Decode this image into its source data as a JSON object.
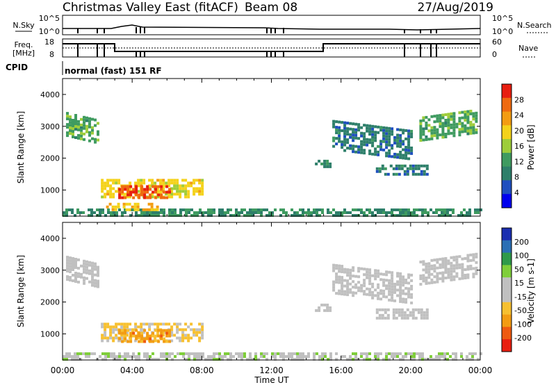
{
  "header": {
    "title": "Christmas Valley East (fitACF)",
    "beam": "Beam 08",
    "date": "27/Aug/2019"
  },
  "summary": {
    "nsky_label": "N.Sky",
    "nsky_ticks": [
      "10^5",
      "10^0"
    ],
    "nsearch_label": "N.Search",
    "nsearch_ticks": [
      "10^5",
      "10^0"
    ],
    "freq_label_lines": [
      "Freq.",
      "[MHz]"
    ],
    "freq_ticks": [
      "18",
      "8"
    ],
    "nave_label": "Nave",
    "nave_ticks": [
      "60",
      "0"
    ],
    "cpid_label": "CPID",
    "cpid_text": "normal (fast) 151 RF"
  },
  "colors": {
    "power_scale": [
      "#0000ee",
      "#1f4fbf",
      "#2e7f6a",
      "#3f9b60",
      "#9ecd3a",
      "#f4d21a",
      "#f39c12",
      "#ef6a10",
      "#e81e10"
    ],
    "velocity_scale": [
      "#e81e10",
      "#ef5a10",
      "#f39c12",
      "#f7c030",
      "#c0c0c0",
      "#c0c0c0",
      "#7fce3a",
      "#2e9a4a",
      "#2a6fb5",
      "#1b2fb0"
    ]
  },
  "chart_data": [
    {
      "type": "heatmap",
      "panel": "power",
      "xlabel": "Time UT",
      "ylabel": "Slant Range [km]",
      "x_ticks": [
        "00:00",
        "04:00",
        "08:00",
        "12:00",
        "16:00",
        "20:00",
        "00:00"
      ],
      "xlim_hours": [
        0,
        24
      ],
      "y_ticks": [
        "4000",
        "3000",
        "2000",
        "1000"
      ],
      "ylim_km": [
        180,
        4500
      ],
      "colorbar_label": "Power [dB]",
      "colorbar_ticks": [
        "28",
        "24",
        "20",
        "16",
        "12",
        "8",
        "4"
      ],
      "colorbar_range": [
        0,
        30
      ],
      "regions": [
        {
          "t": [
            0.2,
            2.1
          ],
          "r": [
            2750,
            3450
          ],
          "level": 12,
          "trend": "descending"
        },
        {
          "t": [
            2.2,
            8.0
          ],
          "r": [
            780,
            1350
          ],
          "level": 18
        },
        {
          "t": [
            3.2,
            6.2
          ],
          "r": [
            780,
            1150
          ],
          "level": 26
        },
        {
          "t": [
            0.0,
            24.0
          ],
          "r": [
            180,
            420
          ],
          "level": 10
        },
        {
          "t": [
            2.5,
            5.5
          ],
          "r": [
            380,
            600
          ],
          "level": 20
        },
        {
          "t": [
            15.5,
            20.0
          ],
          "r": [
            2300,
            3200
          ],
          "level": 8,
          "trend": "descending"
        },
        {
          "t": [
            18.0,
            21.0
          ],
          "r": [
            1500,
            1800
          ],
          "level": 8
        },
        {
          "t": [
            14.5,
            15.3
          ],
          "r": [
            1700,
            1950
          ],
          "level": 10
        },
        {
          "t": [
            20.5,
            23.7
          ],
          "r": [
            2600,
            3300
          ],
          "level": 12,
          "trend": "ascending"
        }
      ]
    },
    {
      "type": "heatmap",
      "panel": "velocity",
      "xlabel": "Time UT",
      "ylabel": "Slant Range [km]",
      "x_ticks": [
        "00:00",
        "04:00",
        "08:00",
        "12:00",
        "16:00",
        "20:00",
        "00:00"
      ],
      "xlim_hours": [
        0,
        24
      ],
      "y_ticks": [
        "4000",
        "3000",
        "2000",
        "1000"
      ],
      "ylim_km": [
        180,
        4500
      ],
      "colorbar_label": "Velocity [m s-1]",
      "colorbar_ticks": [
        "200",
        "100",
        "50",
        "15",
        "-15",
        "-50",
        "-100",
        "-200"
      ],
      "colorbar_range": [
        -250,
        250
      ],
      "regions": [
        {
          "t": [
            0.2,
            2.1
          ],
          "r": [
            2750,
            3450
          ],
          "level": 0,
          "trend": "descending"
        },
        {
          "t": [
            2.2,
            8.0
          ],
          "r": [
            780,
            1350
          ],
          "level": -55
        },
        {
          "t": [
            3.2,
            6.2
          ],
          "r": [
            780,
            1150
          ],
          "level": -120
        },
        {
          "t": [
            0.0,
            24.0
          ],
          "r": [
            180,
            420
          ],
          "level": 30
        },
        {
          "t": [
            15.5,
            20.0
          ],
          "r": [
            2300,
            3200
          ],
          "level": 0,
          "trend": "descending"
        },
        {
          "t": [
            18.0,
            21.0
          ],
          "r": [
            1500,
            1800
          ],
          "level": 0
        },
        {
          "t": [
            14.5,
            15.3
          ],
          "r": [
            1700,
            1950
          ],
          "level": 0
        },
        {
          "t": [
            20.5,
            23.7
          ],
          "r": [
            2600,
            3300
          ],
          "level": 0,
          "trend": "ascending"
        }
      ]
    }
  ]
}
